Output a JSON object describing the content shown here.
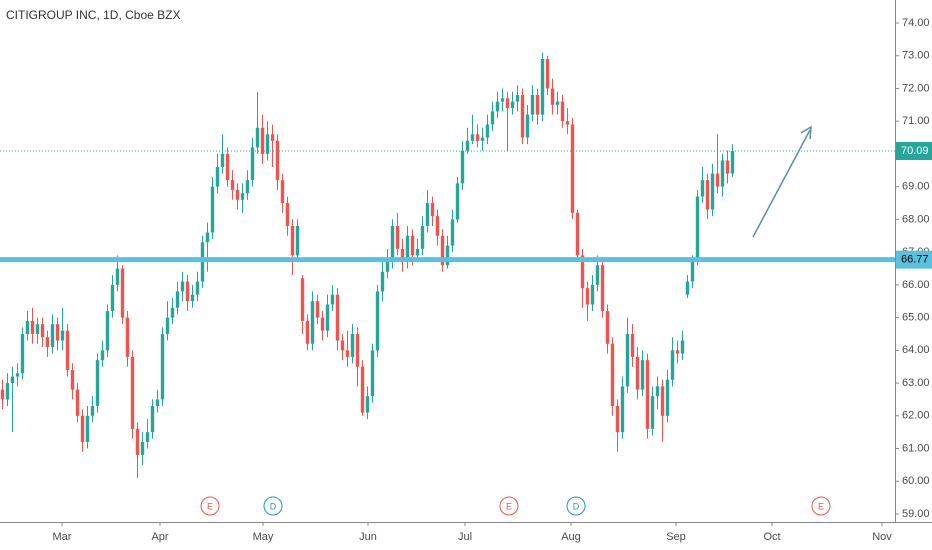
{
  "chart_data": {
    "type": "candlestick",
    "title": "CITIGROUP INC, 1D, Cboe BZX",
    "up_color": "#26a69a",
    "down_color": "#ef5350",
    "ylim": [
      58.7,
      74.5
    ],
    "yticks": [
      {
        "value": 59,
        "label": "59.00"
      },
      {
        "value": 60,
        "label": "60.00"
      },
      {
        "value": 61,
        "label": "61.00"
      },
      {
        "value": 62,
        "label": "62.00"
      },
      {
        "value": 63,
        "label": "63.00"
      },
      {
        "value": 64,
        "label": "64.00"
      },
      {
        "value": 65,
        "label": "65.00"
      },
      {
        "value": 66,
        "label": "66.00"
      },
      {
        "value": 67,
        "label": "67.00"
      },
      {
        "value": 68,
        "label": "68.00"
      },
      {
        "value": 69,
        "label": "69.00"
      },
      {
        "value": 70,
        "label": "70.00"
      },
      {
        "value": 71,
        "label": "71.00"
      },
      {
        "value": 72,
        "label": "72.00"
      },
      {
        "value": 73,
        "label": "73.00"
      },
      {
        "value": 74,
        "label": "74.00"
      }
    ],
    "x_labels": [
      "Mar",
      "Apr",
      "May",
      "Jun",
      "Jul",
      "Aug",
      "Sep",
      "Oct",
      "Nov"
    ],
    "levels": [
      {
        "value": 66.77,
        "color": "#5bc0de"
      },
      {
        "value": 70.09,
        "color": "#26a69a"
      }
    ],
    "events": [
      "E",
      "D",
      "E",
      "D",
      "E"
    ],
    "ohlc": [
      [
        62.8,
        63.1,
        62.2,
        62.5
      ],
      [
        62.5,
        63.3,
        62.3,
        63.0
      ],
      [
        63.0,
        63.5,
        61.5,
        63.2
      ],
      [
        63.2,
        63.6,
        62.9,
        63.3
      ],
      [
        63.3,
        64.7,
        63.1,
        64.5
      ],
      [
        64.5,
        65.2,
        64.3,
        64.9
      ],
      [
        64.9,
        65.3,
        64.2,
        64.5
      ],
      [
        64.5,
        65.0,
        64.2,
        64.8
      ],
      [
        64.8,
        65.0,
        64.1,
        64.4
      ],
      [
        64.4,
        64.6,
        63.8,
        64.1
      ],
      [
        64.1,
        65.1,
        63.9,
        64.8
      ],
      [
        64.8,
        65.0,
        64.0,
        64.3
      ],
      [
        64.3,
        65.3,
        64.0,
        64.6
      ],
      [
        64.6,
        64.8,
        63.2,
        63.4
      ],
      [
        63.4,
        63.6,
        62.5,
        62.8
      ],
      [
        62.8,
        63.0,
        61.8,
        62.0
      ],
      [
        62.0,
        62.2,
        60.9,
        61.2
      ],
      [
        61.2,
        62.3,
        61.0,
        62.0
      ],
      [
        62.0,
        62.6,
        61.8,
        62.3
      ],
      [
        62.3,
        63.9,
        62.1,
        63.7
      ],
      [
        63.7,
        64.3,
        63.5,
        64.0
      ],
      [
        64.0,
        65.4,
        63.8,
        65.2
      ],
      [
        65.2,
        66.3,
        65.0,
        66.0
      ],
      [
        66.0,
        66.9,
        65.8,
        66.5
      ],
      [
        66.5,
        66.6,
        64.8,
        65.0
      ],
      [
        65.0,
        65.2,
        63.5,
        63.8
      ],
      [
        63.8,
        64.0,
        61.3,
        61.6
      ],
      [
        61.6,
        61.8,
        60.1,
        60.8
      ],
      [
        60.8,
        61.5,
        60.5,
        61.2
      ],
      [
        61.2,
        61.9,
        61.0,
        61.5
      ],
      [
        61.5,
        62.5,
        61.3,
        62.3
      ],
      [
        62.3,
        62.8,
        62.1,
        62.5
      ],
      [
        62.5,
        64.7,
        62.3,
        64.5
      ],
      [
        64.5,
        65.5,
        64.3,
        65.0
      ],
      [
        65.0,
        65.6,
        64.8,
        65.3
      ],
      [
        65.3,
        66.1,
        65.1,
        65.8
      ],
      [
        65.8,
        66.4,
        65.5,
        66.1
      ],
      [
        66.1,
        66.3,
        65.2,
        65.5
      ],
      [
        65.5,
        66.0,
        65.3,
        65.7
      ],
      [
        65.7,
        66.4,
        65.5,
        66.1
      ],
      [
        66.1,
        67.5,
        65.9,
        67.3
      ],
      [
        67.3,
        67.9,
        66.4,
        67.6
      ],
      [
        67.6,
        69.3,
        67.4,
        69.0
      ],
      [
        69.0,
        70.0,
        68.8,
        69.6
      ],
      [
        69.6,
        70.6,
        69.4,
        70.0
      ],
      [
        70.0,
        70.2,
        69.0,
        69.2
      ],
      [
        69.2,
        69.5,
        68.6,
        68.9
      ],
      [
        68.9,
        69.1,
        68.3,
        68.6
      ],
      [
        68.6,
        69.1,
        68.2,
        68.8
      ],
      [
        68.8,
        69.5,
        68.6,
        69.2
      ],
      [
        69.2,
        70.5,
        69.0,
        70.2
      ],
      [
        70.2,
        71.9,
        70.0,
        70.8
      ],
      [
        70.8,
        71.2,
        69.7,
        70.0
      ],
      [
        70.0,
        71.0,
        69.8,
        70.6
      ],
      [
        70.6,
        70.9,
        69.6,
        70.4
      ],
      [
        70.4,
        70.6,
        68.9,
        69.2
      ],
      [
        69.2,
        69.4,
        68.2,
        68.5
      ],
      [
        68.5,
        68.7,
        67.5,
        67.8
      ],
      [
        67.8,
        68.0,
        66.3,
        66.9
      ],
      [
        66.9,
        68.0,
        66.7,
        67.8
      ],
      [
        66.2,
        66.3,
        64.5,
        64.9
      ],
      [
        64.9,
        65.1,
        64.0,
        64.2
      ],
      [
        64.2,
        65.8,
        64.0,
        65.5
      ],
      [
        65.5,
        65.7,
        64.8,
        65.0
      ],
      [
        65.0,
        65.2,
        64.3,
        64.6
      ],
      [
        64.6,
        65.7,
        64.4,
        65.4
      ],
      [
        65.4,
        66.0,
        65.2,
        65.7
      ],
      [
        65.7,
        65.9,
        64.0,
        64.3
      ],
      [
        64.3,
        64.5,
        63.7,
        64.0
      ],
      [
        64.0,
        64.6,
        63.5,
        63.8
      ],
      [
        63.8,
        64.8,
        63.6,
        64.5
      ],
      [
        64.5,
        64.7,
        62.9,
        63.5
      ],
      [
        63.5,
        63.7,
        62.0,
        62.1
      ],
      [
        62.1,
        62.9,
        61.9,
        62.6
      ],
      [
        62.6,
        64.2,
        62.4,
        64.0
      ],
      [
        64.0,
        66.0,
        63.8,
        65.8
      ],
      [
        65.8,
        66.7,
        65.5,
        66.4
      ],
      [
        66.4,
        67.1,
        66.2,
        66.8
      ],
      [
        66.8,
        68.0,
        66.5,
        67.8
      ],
      [
        67.8,
        68.2,
        66.9,
        67.1
      ],
      [
        67.1,
        67.4,
        66.4,
        66.7
      ],
      [
        66.7,
        67.8,
        66.5,
        67.5
      ],
      [
        67.5,
        67.7,
        66.6,
        66.9
      ],
      [
        66.9,
        67.4,
        66.7,
        67.1
      ],
      [
        67.1,
        68.1,
        66.9,
        67.8
      ],
      [
        67.8,
        68.9,
        67.6,
        68.5
      ],
      [
        68.5,
        68.7,
        67.8,
        68.1
      ],
      [
        68.1,
        68.3,
        67.2,
        67.5
      ],
      [
        67.5,
        67.7,
        66.4,
        66.6
      ],
      [
        66.6,
        67.5,
        66.5,
        67.2
      ],
      [
        67.2,
        68.3,
        67.0,
        68.0
      ],
      [
        68.0,
        69.3,
        67.9,
        69.1
      ],
      [
        69.1,
        70.4,
        68.9,
        70.1
      ],
      [
        70.1,
        70.8,
        70.0,
        70.4
      ],
      [
        70.4,
        71.2,
        70.3,
        70.6
      ],
      [
        70.6,
        70.9,
        70.2,
        70.4
      ],
      [
        70.4,
        70.8,
        70.1,
        70.5
      ],
      [
        70.5,
        71.2,
        70.3,
        70.9
      ],
      [
        70.9,
        71.6,
        70.7,
        71.3
      ],
      [
        71.3,
        71.9,
        71.1,
        71.6
      ],
      [
        71.6,
        72.0,
        71.3,
        71.7
      ],
      [
        71.7,
        71.9,
        70.1,
        71.4
      ],
      [
        71.4,
        71.9,
        71.2,
        71.6
      ],
      [
        71.6,
        72.1,
        71.3,
        71.8
      ],
      [
        71.8,
        72.0,
        70.3,
        70.5
      ],
      [
        70.5,
        71.5,
        70.3,
        71.2
      ],
      [
        71.2,
        72.1,
        71.0,
        71.8
      ],
      [
        71.8,
        72.0,
        70.9,
        71.2
      ],
      [
        71.2,
        73.1,
        71.0,
        72.9
      ],
      [
        72.9,
        73.0,
        71.8,
        72.0
      ],
      [
        72.0,
        72.3,
        71.2,
        71.5
      ],
      [
        71.5,
        71.9,
        71.2,
        71.6
      ],
      [
        71.6,
        71.8,
        70.8,
        71.0
      ],
      [
        71.0,
        71.4,
        70.6,
        70.9
      ],
      [
        70.9,
        71.1,
        68.0,
        68.2
      ],
      [
        68.2,
        68.3,
        66.7,
        66.9
      ],
      [
        66.9,
        67.1,
        65.3,
        65.9
      ],
      [
        65.9,
        66.1,
        64.9,
        65.4
      ],
      [
        65.4,
        66.3,
        65.2,
        66.0
      ],
      [
        66.0,
        66.9,
        65.8,
        66.6
      ],
      [
        66.6,
        66.8,
        65.0,
        65.2
      ],
      [
        65.2,
        65.4,
        63.9,
        64.2
      ],
      [
        64.2,
        64.4,
        62.0,
        62.3
      ],
      [
        62.3,
        62.5,
        60.9,
        61.5
      ],
      [
        61.5,
        63.2,
        61.3,
        62.9
      ],
      [
        62.9,
        65.0,
        62.7,
        64.5
      ],
      [
        64.5,
        64.8,
        63.5,
        63.8
      ],
      [
        63.8,
        64.1,
        62.5,
        62.8
      ],
      [
        62.8,
        64.0,
        62.6,
        63.7
      ],
      [
        63.7,
        63.9,
        61.3,
        61.6
      ],
      [
        61.6,
        62.9,
        61.4,
        62.6
      ],
      [
        62.6,
        63.2,
        62.2,
        62.9
      ],
      [
        62.9,
        63.1,
        61.2,
        62.0
      ],
      [
        62.0,
        63.4,
        61.8,
        63.1
      ],
      [
        63.1,
        64.4,
        62.9,
        64.0
      ],
      [
        64.0,
        64.3,
        63.6,
        63.9
      ],
      [
        63.9,
        64.6,
        63.7,
        64.3
      ],
      [
        65.7,
        66.3,
        65.6,
        66.1
      ],
      [
        66.1,
        66.9,
        65.9,
        66.7
      ],
      [
        66.7,
        68.9,
        66.6,
        68.7
      ],
      [
        68.7,
        69.6,
        68.5,
        69.2
      ],
      [
        69.2,
        69.4,
        68.0,
        68.3
      ],
      [
        68.3,
        69.7,
        68.1,
        69.4
      ],
      [
        69.4,
        70.6,
        68.8,
        69.0
      ],
      [
        69.0,
        70.0,
        68.7,
        69.8
      ],
      [
        69.8,
        70.1,
        69.1,
        69.4
      ],
      [
        69.4,
        70.3,
        69.3,
        70.09
      ]
    ]
  }
}
